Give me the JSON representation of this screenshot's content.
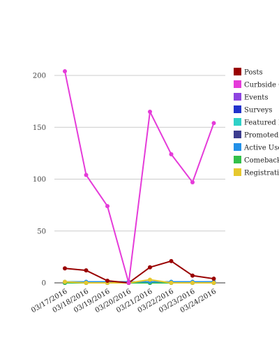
{
  "chart_data": {
    "type": "line",
    "x": [
      "03/17/2016",
      "03/18/2016",
      "03/19/2016",
      "03/20/2016",
      "03/21/2016",
      "03/22/2016",
      "03/23/2016",
      "03/24/2016"
    ],
    "ylim": [
      0,
      200
    ],
    "yticks": [
      0,
      50,
      100,
      150,
      200
    ],
    "grid": true,
    "legend_position": "right",
    "series": [
      {
        "name": "Posts",
        "color": "#990000",
        "values": [
          14,
          12,
          2,
          0,
          15,
          21,
          7,
          4
        ]
      },
      {
        "name": "Curbside C",
        "color": "#e53bd9",
        "values": [
          204,
          104,
          74,
          0,
          165,
          124,
          97,
          154
        ]
      },
      {
        "name": "Events",
        "color": "#8e44e0",
        "values": [
          0,
          0,
          0,
          0,
          0,
          0,
          0,
          0
        ]
      },
      {
        "name": "Surveys",
        "color": "#2233cc",
        "values": [
          0,
          0,
          0,
          0,
          0,
          0,
          0,
          0
        ]
      },
      {
        "name": "Featured Ite",
        "color": "#2ed1c8",
        "values": [
          0,
          0,
          0,
          0,
          0,
          0,
          0,
          0
        ]
      },
      {
        "name": "Promoted P",
        "color": "#3d3d8f",
        "values": [
          0,
          0,
          0,
          0,
          0,
          0,
          0,
          0
        ]
      },
      {
        "name": "Active User",
        "color": "#2290e8",
        "values": [
          1,
          1,
          1,
          1,
          1,
          1,
          1,
          1
        ]
      },
      {
        "name": "Comeback",
        "color": "#33c04a",
        "values": [
          0,
          0,
          0,
          0,
          0,
          0,
          0,
          0
        ]
      },
      {
        "name": "Registration",
        "color": "#e6c82e",
        "values": [
          1,
          0,
          0,
          0,
          3,
          0,
          0,
          0
        ]
      }
    ]
  }
}
